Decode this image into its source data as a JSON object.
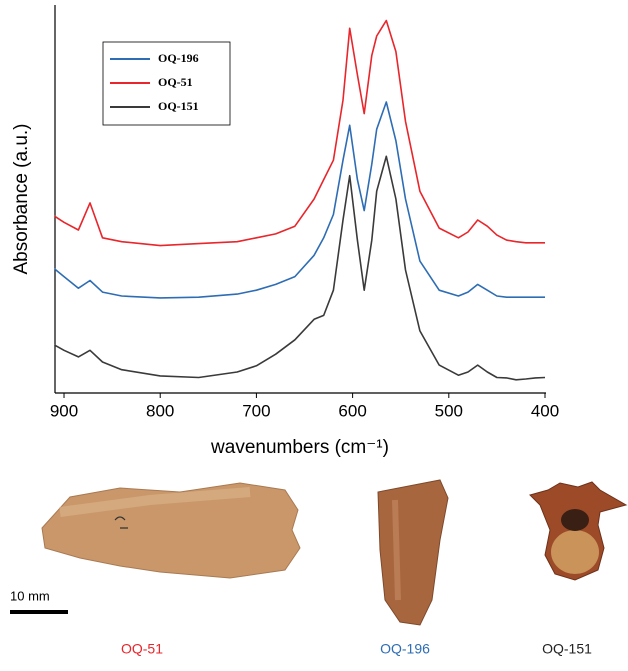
{
  "chart_data": {
    "type": "line",
    "x_label": "wavenumbers (cm⁻¹)",
    "y_label": "Absorbance (a.u.)",
    "xlim": [
      910,
      400
    ],
    "xticks": [
      900,
      800,
      700,
      600,
      500,
      400
    ],
    "ylim": [
      0,
      100
    ],
    "x": [
      910,
      900,
      885,
      873,
      860,
      840,
      800,
      760,
      720,
      700,
      680,
      660,
      640,
      630,
      620,
      610,
      603,
      595,
      588,
      580,
      575,
      565,
      555,
      545,
      530,
      510,
      490,
      480,
      470,
      460,
      450,
      440,
      430,
      420,
      410,
      400
    ],
    "series": [
      {
        "name": "OQ-196",
        "color": "#2e6db4",
        "values": [
          32,
          30,
          27,
          29,
          26,
          25,
          24.5,
          24.7,
          25.5,
          26.5,
          28,
          30,
          35.5,
          40,
          46,
          60,
          69,
          55,
          47,
          59,
          68,
          75,
          65,
          50,
          34,
          26.5,
          25,
          26,
          28,
          26.5,
          25,
          24.7,
          24.7,
          24.7,
          24.7,
          24.7
        ]
      },
      {
        "name": "OQ-51",
        "color": "#e8262b",
        "values": [
          45.6,
          44,
          42,
          49,
          40,
          39,
          38,
          38.5,
          39,
          40,
          41,
          43,
          50,
          55,
          60,
          75.5,
          94,
          82,
          72,
          87,
          92,
          96,
          88,
          70,
          52,
          42.5,
          40,
          41.5,
          44.6,
          43,
          40.7,
          39.4,
          39,
          38.7,
          38.7,
          38.7
        ]
      },
      {
        "name": "OQ-151",
        "color": "#3a3a3a",
        "values": [
          12.4,
          11,
          9.3,
          11,
          8,
          6,
          4.4,
          4,
          5.4,
          7,
          10,
          13.7,
          19,
          20,
          26.5,
          44.6,
          56,
          39.4,
          26.5,
          39.4,
          52,
          61,
          50,
          31.7,
          16,
          7.2,
          4.6,
          5.4,
          7.2,
          5.4,
          4,
          3.9,
          3.4,
          3.6,
          3.9,
          4
        ]
      }
    ]
  },
  "specimens": [
    {
      "label": "OQ-51",
      "color": "#e8262b"
    },
    {
      "label": "OQ-196",
      "color": "#2e6db4"
    },
    {
      "label": "OQ-151",
      "color": "#222222"
    }
  ],
  "scale_bar": "10 mm"
}
